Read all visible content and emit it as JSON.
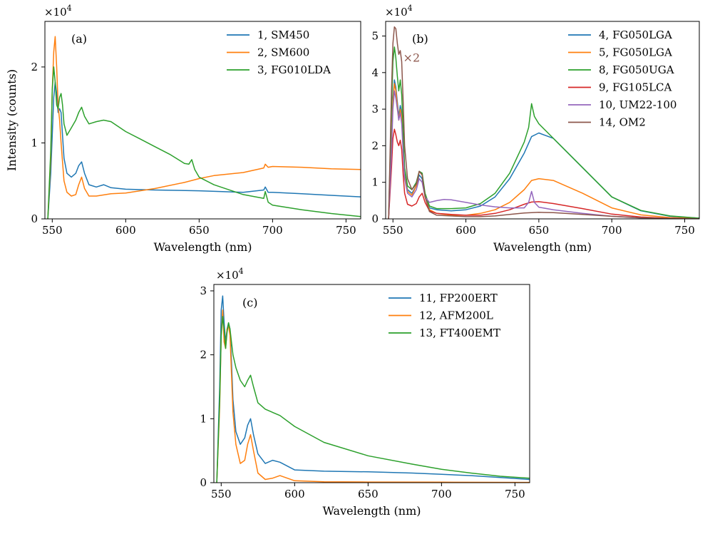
{
  "colors": {
    "blue": "#1f77b4",
    "orange": "#ff7f0e",
    "green": "#2ca02c",
    "red": "#d62728",
    "purple": "#9467bd",
    "brown": "#8c564b"
  },
  "chart_data": [
    {
      "type": "line",
      "panel_label": "(a)",
      "xlabel": "Wavelength (nm)",
      "ylabel": "Intensity (counts)",
      "xlim": [
        545,
        760
      ],
      "ylim": [
        0,
        26000
      ],
      "xticks": [
        550,
        600,
        650,
        700,
        750
      ],
      "yticks": [
        0,
        10000,
        20000
      ],
      "yticklabels": [
        "0",
        "1",
        "2"
      ],
      "multiplier": "×10",
      "multiplier_exp": "4",
      "legend_position": "top-right",
      "series": [
        {
          "name": "1, SM450",
          "color": "#1f77b4",
          "x": [
            547,
            549,
            550,
            551,
            552,
            553,
            554,
            555,
            556,
            557,
            558,
            560,
            563,
            566,
            568,
            570,
            572,
            575,
            580,
            585,
            590,
            600,
            620,
            650,
            680,
            694,
            695,
            697,
            700,
            720,
            740,
            760
          ],
          "y": [
            0,
            6000,
            11000,
            16000,
            18000,
            16500,
            14000,
            14500,
            14000,
            11000,
            8000,
            6000,
            5500,
            6000,
            7000,
            7500,
            6000,
            4500,
            4200,
            4500,
            4100,
            3900,
            3800,
            3700,
            3500,
            3800,
            4200,
            3500,
            3500,
            3300,
            3100,
            2900
          ]
        },
        {
          "name": "2, SM600",
          "color": "#ff7f0e",
          "x": [
            547,
            549,
            550,
            551,
            552,
            553,
            554,
            555,
            556,
            557,
            558,
            560,
            563,
            566,
            568,
            570,
            572,
            575,
            580,
            590,
            600,
            620,
            640,
            650,
            660,
            680,
            694,
            695,
            697,
            700,
            720,
            740,
            760
          ],
          "y": [
            0,
            8000,
            17000,
            22000,
            24000,
            20000,
            15000,
            13000,
            10000,
            7500,
            5000,
            3500,
            3000,
            3200,
            4500,
            5500,
            4000,
            3000,
            3000,
            3300,
            3400,
            4000,
            4800,
            5300,
            5700,
            6100,
            6700,
            7200,
            6800,
            6900,
            6800,
            6600,
            6500
          ]
        },
        {
          "name": "3, FG010LDA",
          "color": "#2ca02c",
          "x": [
            547,
            549,
            550,
            551,
            552,
            553,
            554,
            555,
            556,
            557,
            558,
            560,
            563,
            566,
            568,
            570,
            572,
            575,
            580,
            585,
            590,
            600,
            610,
            620,
            630,
            640,
            643,
            645,
            647,
            650,
            660,
            680,
            694,
            695,
            697,
            700,
            720,
            740,
            760
          ],
          "y": [
            0,
            9000,
            17000,
            20000,
            18000,
            15000,
            14500,
            16000,
            16500,
            15000,
            12500,
            11000,
            12000,
            13000,
            14000,
            14700,
            13500,
            12500,
            12800,
            13000,
            12800,
            11500,
            10500,
            9500,
            8500,
            7300,
            7200,
            7800,
            6500,
            5500,
            4500,
            3200,
            2700,
            3600,
            2200,
            1800,
            1200,
            700,
            300
          ]
        }
      ]
    },
    {
      "type": "line",
      "panel_label": "(b)",
      "xlabel": "Wavelength (nm)",
      "ylabel": "",
      "xlim": [
        545,
        760
      ],
      "ylim": [
        0,
        54000
      ],
      "xticks": [
        550,
        600,
        650,
        700,
        750
      ],
      "yticks": [
        0,
        10000,
        20000,
        30000,
        40000,
        50000
      ],
      "yticklabels": [
        "0",
        "1",
        "2",
        "3",
        "4",
        "5"
      ],
      "multiplier": "×10",
      "multiplier_exp": "4",
      "annotation": "×2",
      "legend_position": "top-right",
      "series": [
        {
          "name": "4, FG050LGA",
          "color": "#1f77b4",
          "x": [
            547,
            549,
            550,
            551,
            552,
            553,
            554,
            555,
            556,
            557,
            558,
            560,
            563,
            566,
            568,
            570,
            572,
            575,
            580,
            590,
            600,
            610,
            620,
            630,
            640,
            645,
            650,
            660,
            680,
            700,
            720,
            740,
            760
          ],
          "y": [
            0,
            20000,
            33000,
            38000,
            36000,
            32000,
            28000,
            31000,
            29000,
            20000,
            12000,
            8000,
            7000,
            9000,
            12000,
            11000,
            6000,
            3000,
            2500,
            2200,
            2500,
            3500,
            6000,
            11000,
            18000,
            22500,
            23500,
            22000,
            14000,
            6000,
            2200,
            700,
            200
          ]
        },
        {
          "name": "5, FG050LGA",
          "color": "#ff7f0e",
          "x": [
            547,
            549,
            550,
            551,
            552,
            553,
            554,
            555,
            556,
            557,
            558,
            560,
            563,
            566,
            568,
            570,
            572,
            575,
            580,
            590,
            600,
            610,
            620,
            630,
            640,
            645,
            650,
            660,
            680,
            700,
            720,
            740,
            760
          ],
          "y": [
            0,
            20000,
            32000,
            37000,
            35000,
            31000,
            27000,
            30000,
            28000,
            19000,
            11500,
            7500,
            6500,
            9000,
            13000,
            12000,
            6000,
            2500,
            1500,
            1000,
            1000,
            1500,
            2500,
            4500,
            8000,
            10500,
            11000,
            10500,
            7000,
            3000,
            1100,
            350,
            100
          ]
        },
        {
          "name": "8, FG050UGA",
          "color": "#2ca02c",
          "x": [
            547,
            549,
            550,
            551,
            552,
            553,
            554,
            555,
            556,
            557,
            558,
            560,
            563,
            566,
            568,
            570,
            572,
            575,
            580,
            590,
            600,
            610,
            620,
            630,
            640,
            643,
            645,
            647,
            650,
            655,
            660,
            680,
            700,
            720,
            740,
            760
          ],
          "y": [
            0,
            30000,
            43000,
            47000,
            44000,
            39000,
            35000,
            38000,
            34000,
            24000,
            14000,
            9000,
            8000,
            10000,
            13000,
            12500,
            7000,
            3500,
            2800,
            2800,
            3000,
            4200,
            7000,
            12500,
            21000,
            25000,
            31500,
            28000,
            26000,
            24000,
            22000,
            14000,
            6000,
            2300,
            800,
            200
          ]
        },
        {
          "name": "9, FG105LCA",
          "color": "#d62728",
          "x": [
            547,
            549,
            550,
            551,
            552,
            553,
            554,
            555,
            556,
            557,
            558,
            560,
            563,
            566,
            568,
            570,
            572,
            575,
            580,
            590,
            600,
            610,
            620,
            630,
            640,
            645,
            650,
            660,
            680,
            700,
            720,
            740,
            760
          ],
          "y": [
            0,
            14000,
            22000,
            24500,
            23000,
            21000,
            20000,
            21500,
            19000,
            12000,
            7000,
            4000,
            3500,
            4200,
            6000,
            7000,
            4500,
            2200,
            1500,
            1200,
            1000,
            1000,
            1500,
            2500,
            4000,
            4600,
            4700,
            4200,
            2800,
            1300,
            500,
            150,
            50
          ]
        },
        {
          "name": "10, UM22-100",
          "color": "#9467bd",
          "x": [
            547,
            549,
            550,
            551,
            552,
            553,
            554,
            555,
            556,
            557,
            558,
            560,
            563,
            566,
            568,
            570,
            572,
            575,
            580,
            585,
            590,
            600,
            610,
            620,
            630,
            640,
            643,
            645,
            647,
            650,
            660,
            680,
            700,
            720,
            740,
            760
          ],
          "y": [
            0,
            18000,
            30000,
            35000,
            33000,
            30000,
            27000,
            29000,
            26000,
            18000,
            11000,
            7000,
            6000,
            8000,
            11000,
            10000,
            6000,
            4500,
            5000,
            5300,
            5200,
            4500,
            3800,
            3300,
            3000,
            3000,
            4500,
            7500,
            4500,
            3200,
            2500,
            1500,
            700,
            250,
            80,
            20
          ]
        },
        {
          "name": "14, OM2",
          "color": "#8c564b",
          "x": [
            547,
            549,
            550,
            551,
            552,
            553,
            554,
            555,
            556,
            557,
            558,
            560,
            563,
            566,
            568,
            570,
            572,
            575,
            580,
            590,
            600,
            610,
            620,
            630,
            640,
            650,
            660,
            680,
            700,
            720,
            740,
            760
          ],
          "y": [
            0,
            35000,
            48000,
            52500,
            52000,
            48000,
            45000,
            46000,
            43000,
            32000,
            20000,
            11000,
            8000,
            9500,
            13000,
            12000,
            6000,
            2000,
            1000,
            800,
            600,
            600,
            800,
            1200,
            1600,
            1800,
            1700,
            1200,
            700,
            300,
            100,
            30
          ]
        }
      ]
    },
    {
      "type": "line",
      "panel_label": "(c)",
      "xlabel": "Wavelength (nm)",
      "ylabel": "",
      "xlim": [
        545,
        760
      ],
      "ylim": [
        0,
        31000
      ],
      "xticks": [
        550,
        600,
        650,
        700,
        750
      ],
      "yticks": [
        0,
        10000,
        20000,
        30000
      ],
      "yticklabels": [
        "0",
        "1",
        "2",
        "3"
      ],
      "multiplier": "×10",
      "multiplier_exp": "4",
      "legend_position": "top-right",
      "series": [
        {
          "name": "11, FP200ERT",
          "color": "#1f77b4",
          "x": [
            547,
            549,
            550,
            551,
            552,
            553,
            554,
            555,
            556,
            557,
            558,
            560,
            563,
            566,
            568,
            570,
            572,
            575,
            580,
            585,
            590,
            600,
            620,
            650,
            680,
            700,
            720,
            740,
            760
          ],
          "y": [
            0,
            15000,
            27000,
            29200,
            25000,
            22000,
            24000,
            25000,
            24000,
            19000,
            13000,
            8000,
            6000,
            7000,
            9000,
            10000,
            7500,
            4500,
            3000,
            3500,
            3200,
            2000,
            1800,
            1700,
            1500,
            1300,
            1100,
            800,
            500
          ]
        },
        {
          "name": "12, AFM200L",
          "color": "#ff7f0e",
          "x": [
            547,
            549,
            550,
            551,
            552,
            553,
            554,
            555,
            556,
            557,
            558,
            560,
            563,
            566,
            568,
            570,
            572,
            575,
            580,
            585,
            590,
            595,
            600,
            620,
            650,
            700,
            760
          ],
          "y": [
            0,
            12000,
            23000,
            27000,
            22000,
            21000,
            24000,
            24500,
            23000,
            17000,
            11000,
            6000,
            3000,
            3500,
            6000,
            7500,
            5000,
            1500,
            500,
            700,
            1100,
            700,
            300,
            150,
            100,
            80,
            50
          ]
        },
        {
          "name": "13, FT400EMT",
          "color": "#2ca02c",
          "x": [
            547,
            549,
            550,
            551,
            552,
            553,
            554,
            555,
            556,
            557,
            558,
            560,
            563,
            566,
            568,
            570,
            572,
            575,
            580,
            585,
            590,
            600,
            620,
            650,
            680,
            700,
            720,
            740,
            760
          ],
          "y": [
            0,
            13000,
            23000,
            26000,
            24000,
            21000,
            23500,
            25000,
            24000,
            22000,
            20000,
            18000,
            16000,
            15000,
            16000,
            16800,
            15000,
            12500,
            11500,
            11000,
            10500,
            8800,
            6300,
            4200,
            2900,
            2100,
            1500,
            1000,
            700
          ]
        }
      ]
    }
  ]
}
